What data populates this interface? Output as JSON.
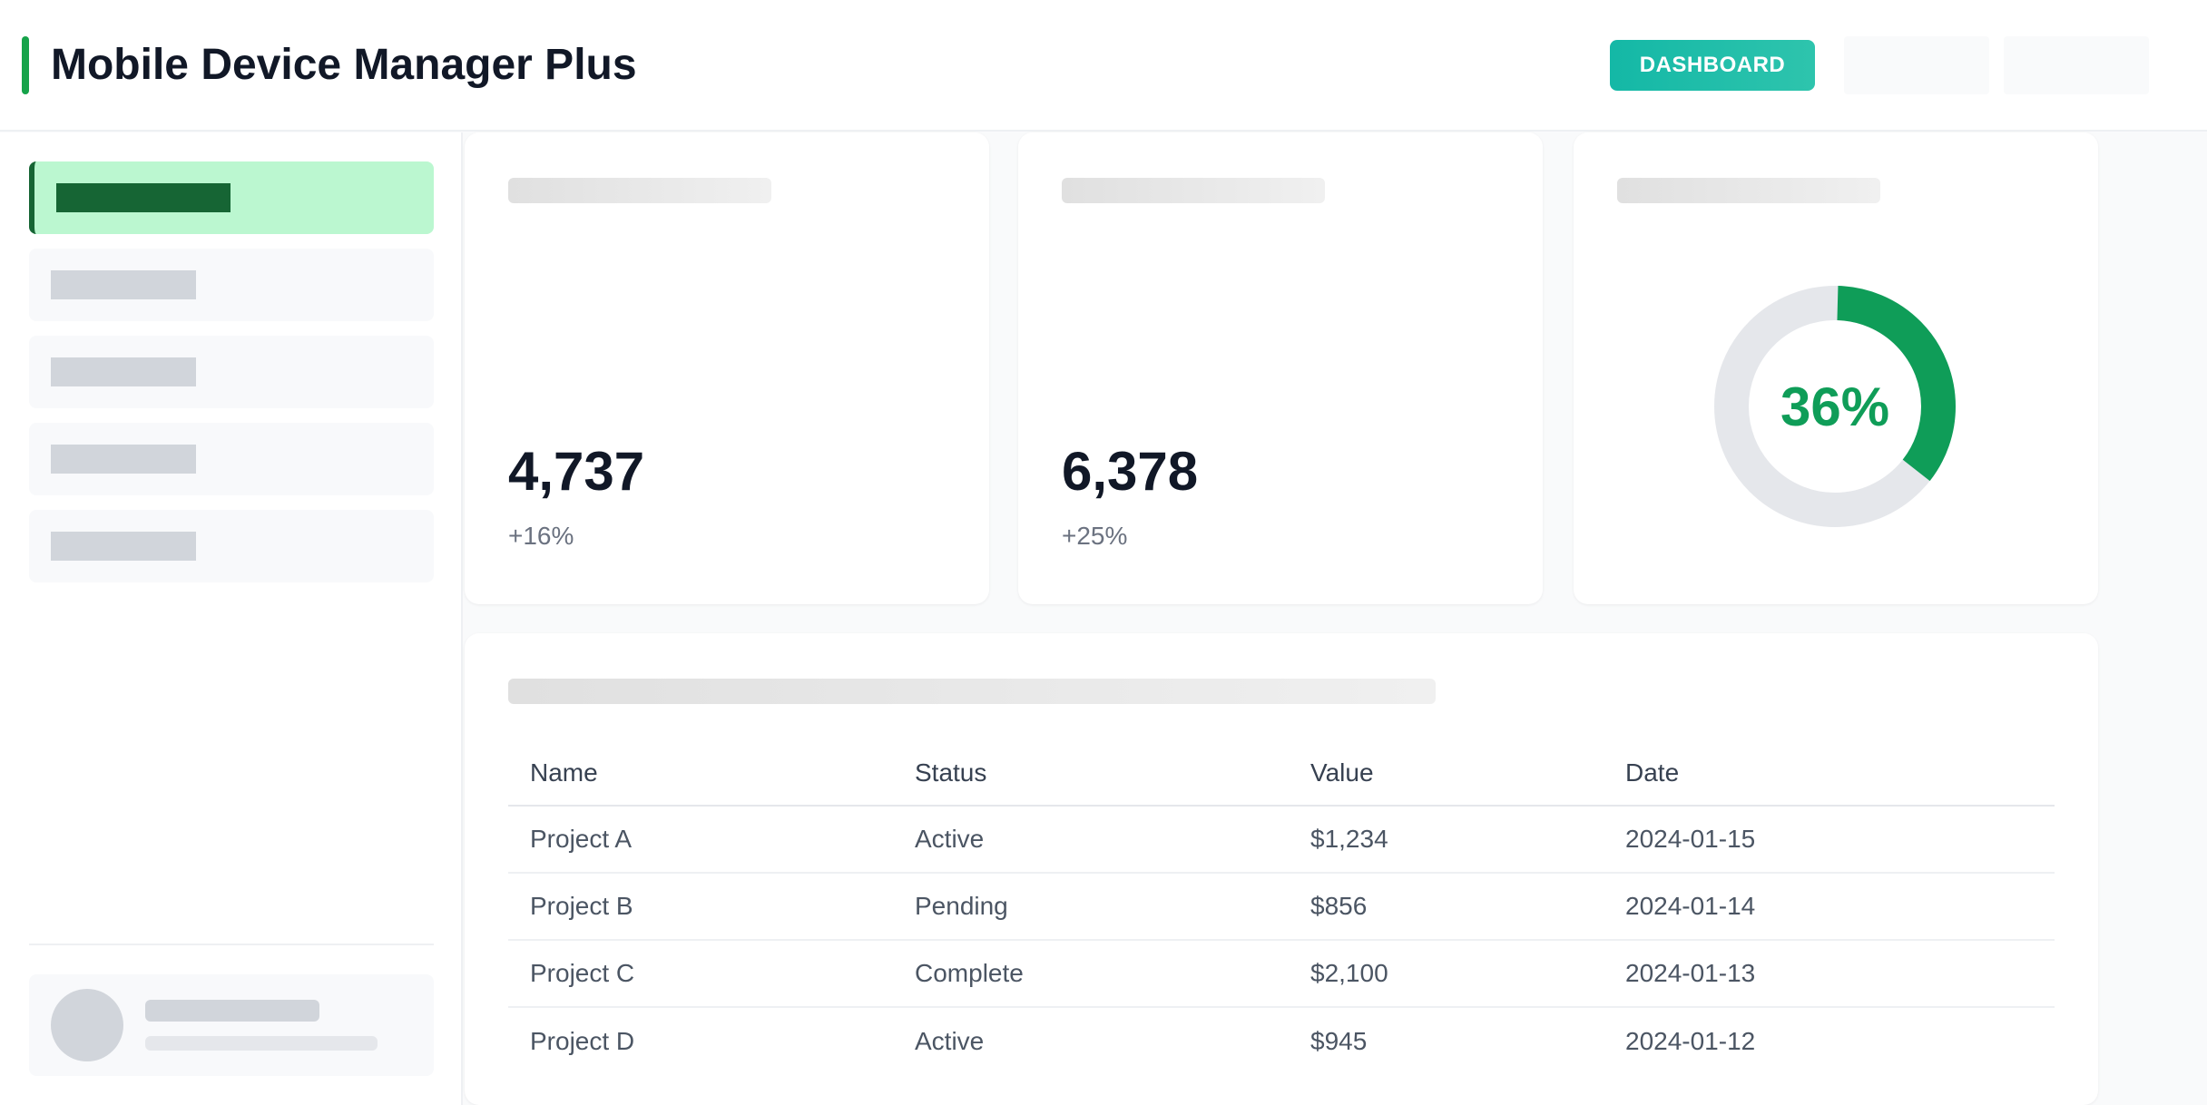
{
  "header": {
    "title": "Mobile Device Manager Plus",
    "dashboard_label": "DASHBOARD"
  },
  "colors": {
    "accent": "#16a34a",
    "button": "#14b8a6",
    "donut": "#0f9d58",
    "nav_active_bg": "#bbf7d0"
  },
  "stats": [
    {
      "value": "4,737",
      "delta": "+16%"
    },
    {
      "value": "6,378",
      "delta": "+25%"
    }
  ],
  "gauge": {
    "label": "36%",
    "fraction": 0.36
  },
  "table": {
    "headers": [
      "Name",
      "Status",
      "Value",
      "Date"
    ],
    "rows": [
      [
        "Project A",
        "Active",
        "$1,234",
        "2024-01-15"
      ],
      [
        "Project B",
        "Pending",
        "$856",
        "2024-01-14"
      ],
      [
        "Project C",
        "Complete",
        "$2,100",
        "2024-01-13"
      ],
      [
        "Project D",
        "Active",
        "$945",
        "2024-01-12"
      ]
    ]
  }
}
